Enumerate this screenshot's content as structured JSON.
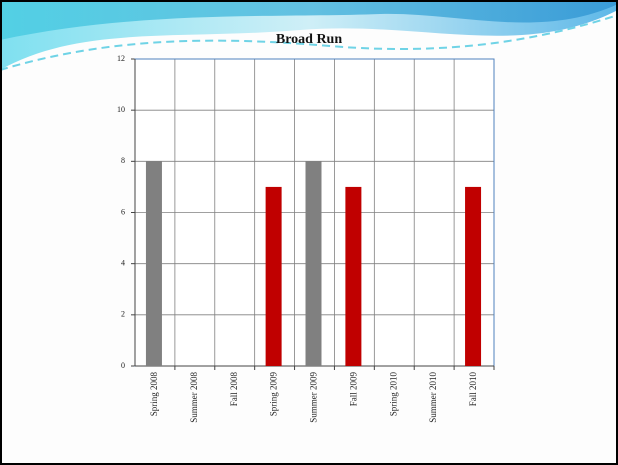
{
  "chart_data": {
    "type": "bar",
    "title": "Broad Run",
    "categories": [
      "Spring 2008",
      "Summer 2008",
      "Fall 2008",
      "Spring 2009",
      "Summer 2009",
      "Fall 2009",
      "Spring 2010",
      "Summer 2010",
      "Fall 2010"
    ],
    "values": [
      8,
      0,
      0,
      7,
      8,
      7,
      0,
      0,
      7
    ],
    "colors": [
      "#808080",
      "#808080",
      "#808080",
      "#c00000",
      "#808080",
      "#c00000",
      "#c00000",
      "#c00000",
      "#c00000"
    ],
    "ylim": [
      0,
      12
    ],
    "yticks": [
      0,
      2,
      4,
      6,
      8,
      10,
      12
    ],
    "grid": true
  }
}
